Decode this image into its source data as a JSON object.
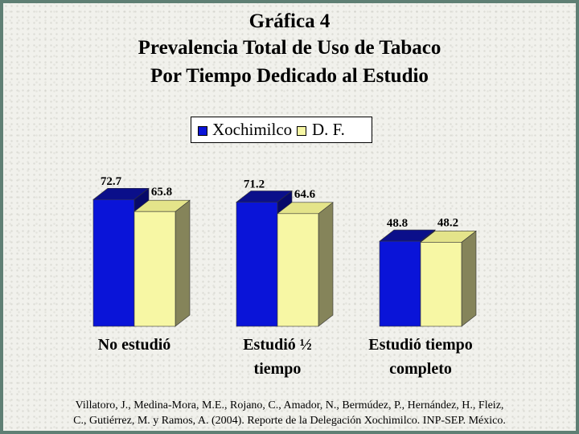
{
  "header": {
    "line1": "Gráfica 4",
    "line2": "Prevalencia Total de Uso de Tabaco",
    "line3": "Por Tiempo Dedicado al Estudio"
  },
  "colors": {
    "series1": "#0a14d8",
    "series1_top": "#0b0f8a",
    "series1_side": "#07096a",
    "series2": "#f7f7a4",
    "series2_top": "#e4e48a",
    "series2_side": "#85845a",
    "background": "#f1f1ec",
    "frame": "#5f7f74"
  },
  "chart_data": {
    "type": "bar",
    "categories": [
      "No estudió",
      "Estudió ½ tiempo",
      "Estudió tiempo completo"
    ],
    "category_lines": [
      [
        "No estudió"
      ],
      [
        "Estudió ½",
        "tiempo"
      ],
      [
        "Estudió tiempo",
        "completo"
      ]
    ],
    "series": [
      {
        "name": "Xochimilco",
        "values": [
          72.7,
          71.2,
          48.8
        ]
      },
      {
        "name": "D. F.",
        "values": [
          65.8,
          64.6,
          48.2
        ]
      }
    ],
    "data_labels": [
      [
        "72.7",
        "71.2",
        "48.8"
      ],
      [
        "65.8",
        "64.6",
        "48.2"
      ]
    ],
    "ylim": [
      0,
      100
    ],
    "legend_position": "top-center",
    "grid": false
  },
  "citation": {
    "line1": "Villatoro, J., Medina-Mora, M.E., Rojano, C., Amador, N., Bermúdez, P., Hernández, H., Fleiz,",
    "line2": "C., Gutiérrez, M. y Ramos, A. (2004). Reporte de la Delegación Xochimilco. INP-SEP. México."
  }
}
